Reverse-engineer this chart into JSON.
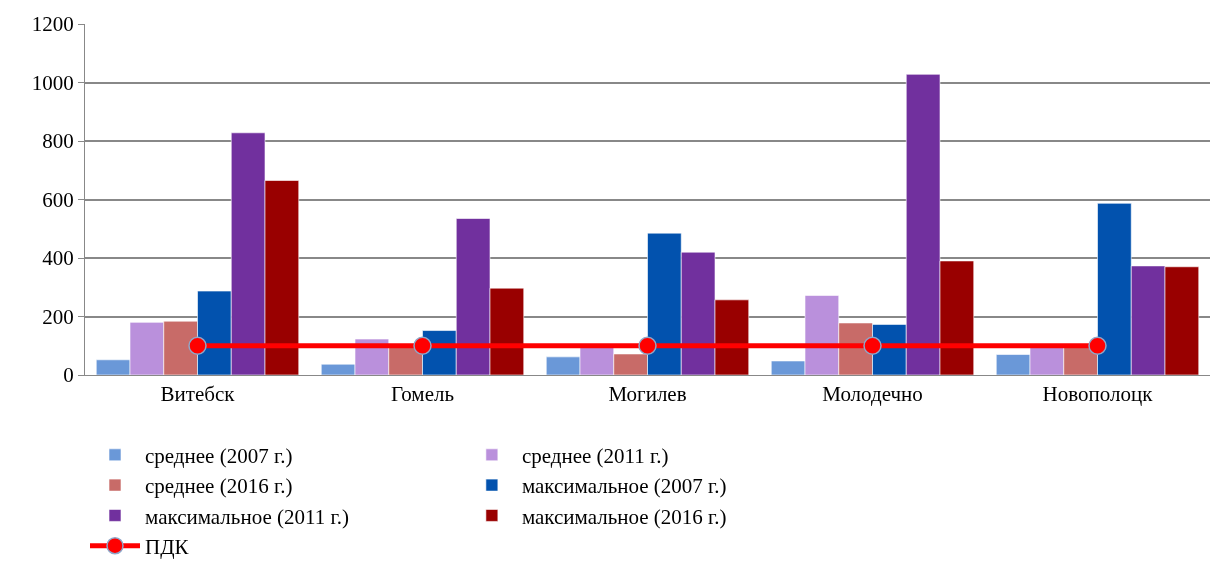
{
  "chart_data": {
    "type": "bar",
    "categories": [
      "Витебск",
      "Гомель",
      "Могилев",
      "Молодечно",
      "Новополоцк"
    ],
    "series": [
      {
        "name": "среднее (2007 г.)",
        "color": "#6a98d8",
        "values": [
          52,
          37,
          62,
          48,
          70
        ]
      },
      {
        "name": "среднее (2011 г.)",
        "color": "#ba90dc",
        "values": [
          180,
          123,
          100,
          272,
          100
        ]
      },
      {
        "name": "среднее (2016 г.)",
        "color": "#c86b68",
        "values": [
          184,
          100,
          72,
          178,
          100
        ]
      },
      {
        "name": "максимальное (2007 г.)",
        "color": "#0252ae",
        "values": [
          287,
          152,
          485,
          173,
          587
        ]
      },
      {
        "name": "максимальное (2011 г.)",
        "color": "#71309e",
        "values": [
          828,
          535,
          420,
          1028,
          373
        ]
      },
      {
        "name": "максимальное (2016 г.)",
        "color": "#990000",
        "values": [
          665,
          297,
          257,
          390,
          370
        ]
      },
      {
        "name": "ПДК",
        "type": "line",
        "color": "#ff0000",
        "marker": "circle",
        "values": [
          100,
          100,
          100,
          100,
          100
        ]
      }
    ],
    "ylim": [
      0,
      1200
    ],
    "yticks": [
      0,
      200,
      400,
      600,
      800,
      1000,
      1200
    ],
    "grid": "y",
    "legend": "bottom"
  }
}
